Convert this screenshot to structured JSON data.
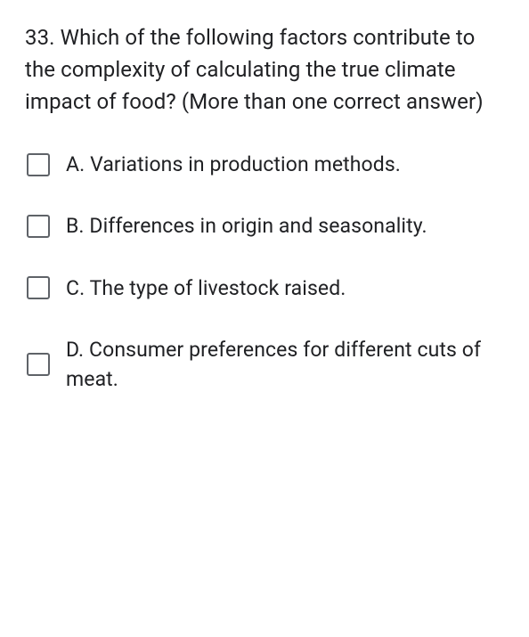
{
  "question": {
    "number": "33.",
    "text": "Which of the following factors contribute to the complexity of calculating the true climate impact of food? (More than one correct answer)",
    "text_color": "#202124",
    "font_size": 24
  },
  "options": [
    {
      "letter": "A.",
      "text": "Variations in production methods.",
      "checked": false
    },
    {
      "letter": "B.",
      "text": "Differences in origin and seasonality.",
      "checked": false
    },
    {
      "letter": "C.",
      "text": "The type of livestock raised.",
      "checked": false
    },
    {
      "letter": "D.",
      "text": "Consumer preferences for different cuts of meat.",
      "checked": false
    }
  ],
  "checkbox": {
    "border_color": "#5f6368",
    "background_color": "#ffffff",
    "size": 26,
    "border_radius": 3
  },
  "background_color": "#ffffff"
}
